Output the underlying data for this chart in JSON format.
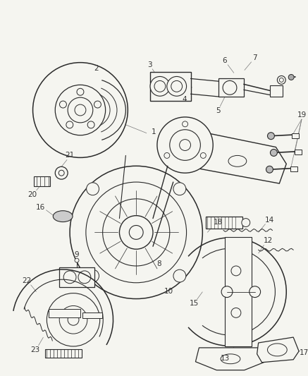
{
  "bg_color": "#f5f5f0",
  "line_color": "#2a2a2a",
  "label_color": "#333333",
  "leader_color": "#777777",
  "fig_width": 4.37,
  "fig_height": 5.33,
  "dpi": 100,
  "label_fontsize": 7.5,
  "lw_main": 0.9,
  "lw_thin": 0.6,
  "lw_leader": 0.5
}
